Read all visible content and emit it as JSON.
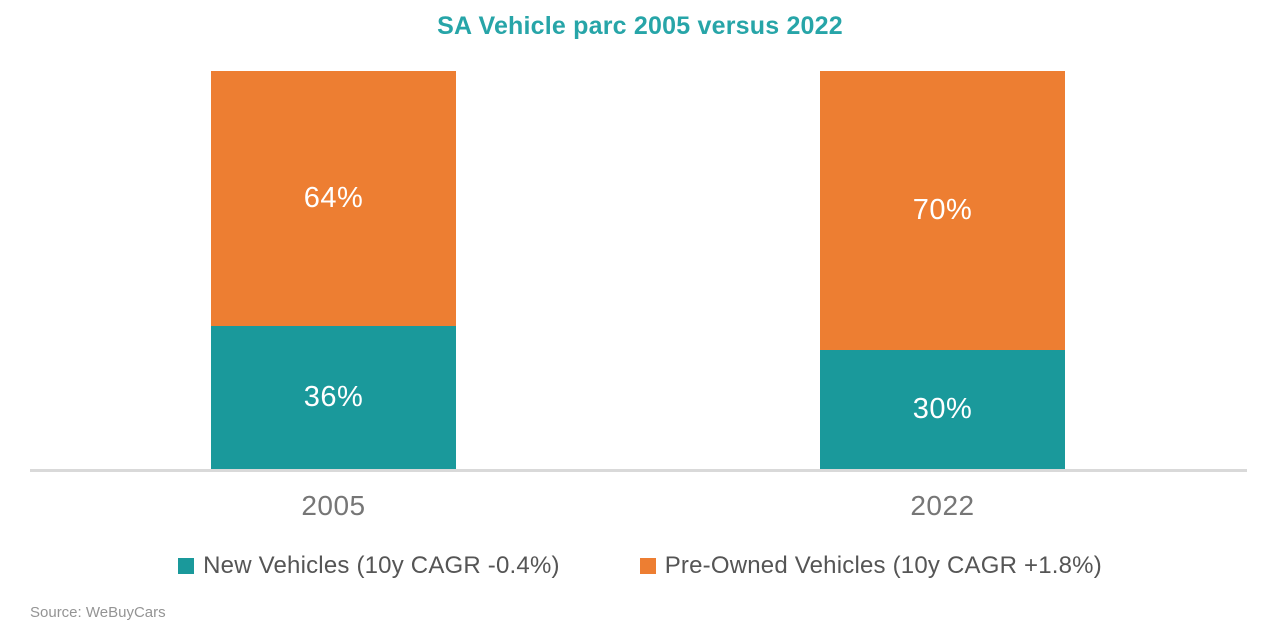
{
  "title": "SA Vehicle parc 2005 versus 2022",
  "theme": {
    "title_color": "#27a5a8",
    "teal": "#1a999b",
    "orange": "#ed7e32"
  },
  "chart_data": {
    "type": "bar",
    "subtype": "stacked-100-percent",
    "title": "SA Vehicle parc 2005 versus 2022",
    "categories": [
      "2005",
      "2022"
    ],
    "series": [
      {
        "name": "New Vehicles (10y CAGR -0.4%)",
        "color": "#1a999b",
        "values": [
          36,
          30
        ],
        "labels": [
          "36%",
          "30%"
        ]
      },
      {
        "name": "Pre-Owned Vehicles (10y CAGR +1.8%)",
        "color": "#ed7e32",
        "values": [
          64,
          70
        ],
        "labels": [
          "64%",
          "70%"
        ]
      }
    ],
    "xlabel": "",
    "ylabel": "",
    "ylim": [
      0,
      100
    ],
    "unit": "%",
    "grid": false,
    "legend_position": "bottom",
    "data_label_color": "#ffffff"
  },
  "source": "Source: WeBuyCars"
}
